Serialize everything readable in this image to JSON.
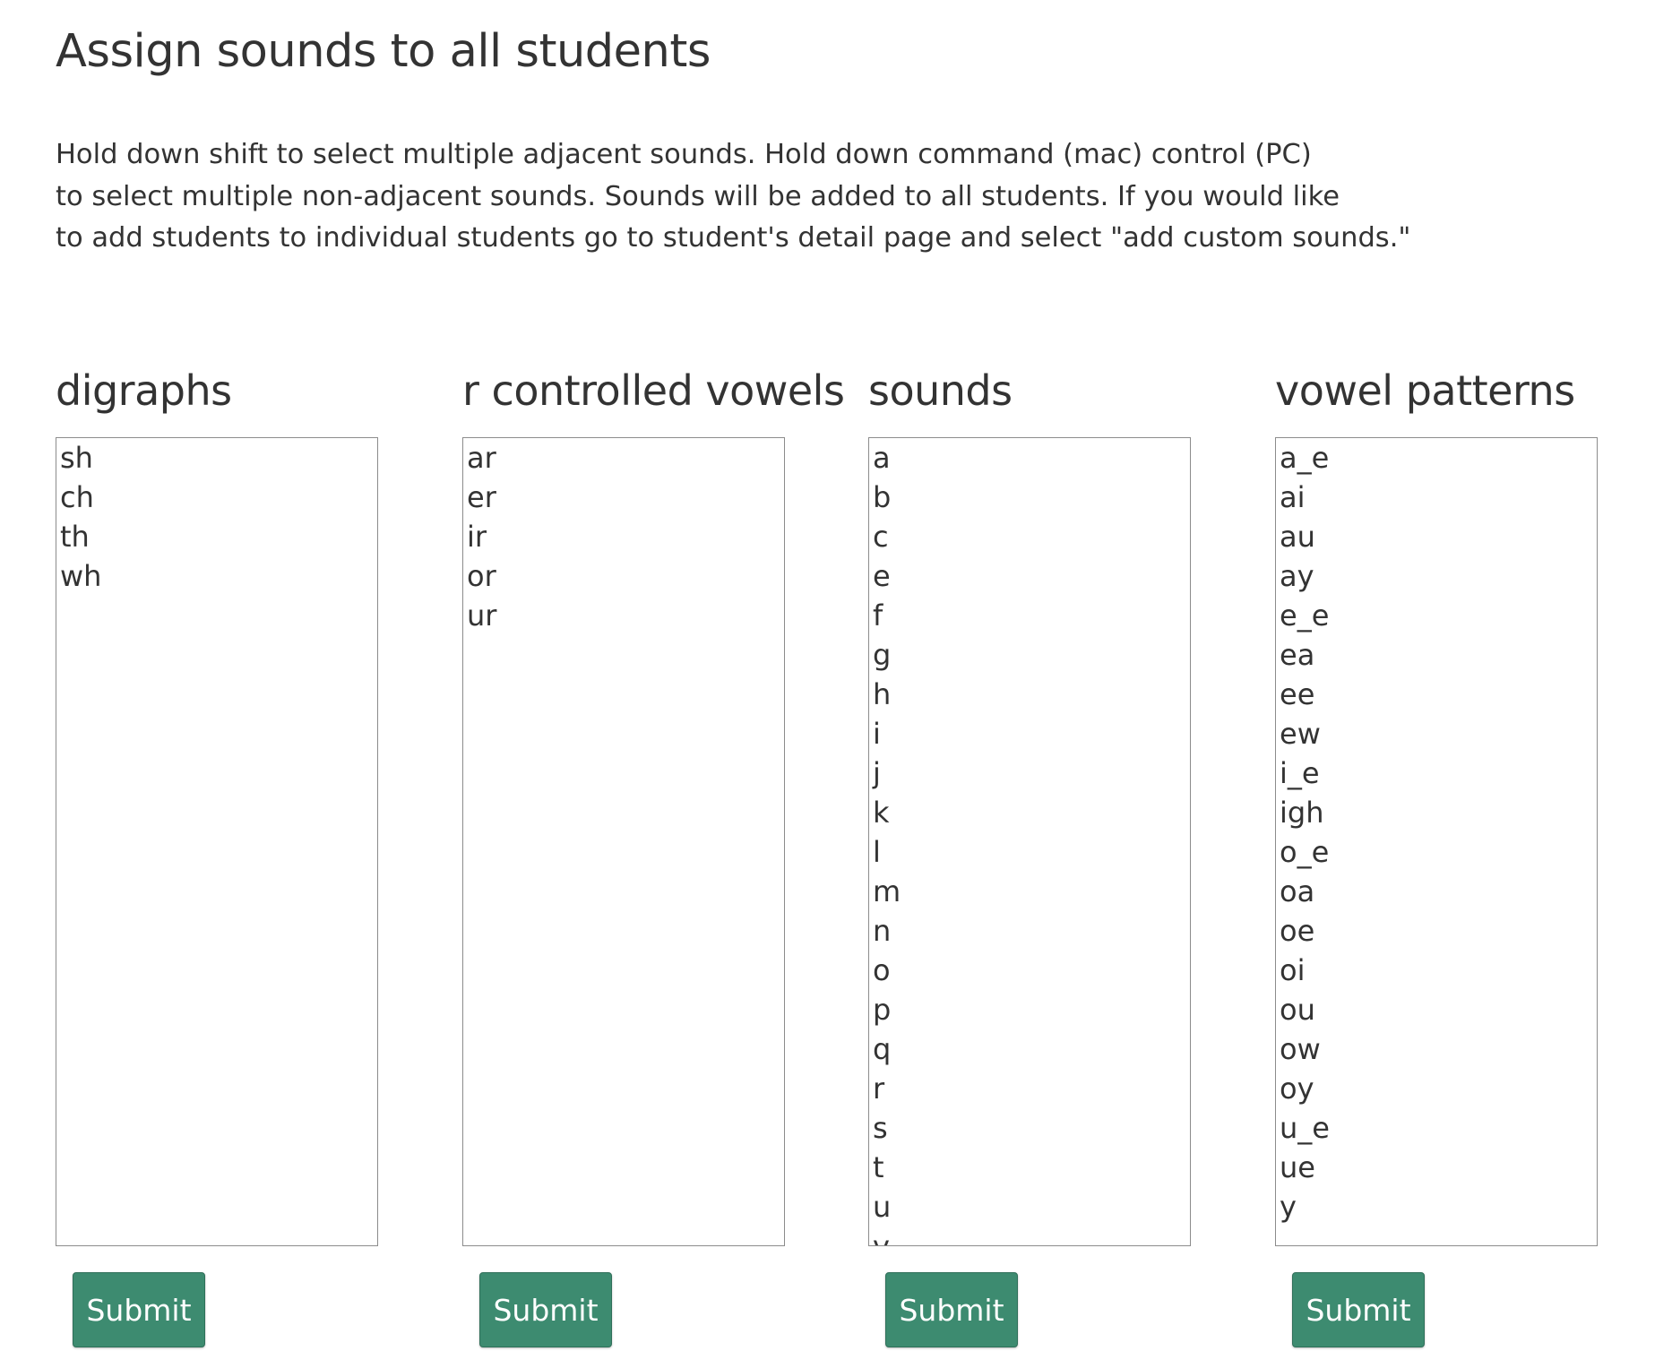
{
  "page": {
    "title": "Assign sounds to all students",
    "instructions": [
      "Hold down shift to select multiple adjacent sounds. Hold down command (mac) control (PC)",
      "to select multiple non-adjacent sounds. Sounds will be added to all students. If you would like",
      "to add students to individual students go to student's detail page and select \"add custom sounds.\""
    ]
  },
  "columns": [
    {
      "heading": "digraphs",
      "items": [
        "sh",
        "ch",
        "th",
        "wh"
      ],
      "submit_label": "Submit"
    },
    {
      "heading": "r controlled vowels",
      "items": [
        "ar",
        "er",
        "ir",
        "or",
        "ur"
      ],
      "submit_label": "Submit"
    },
    {
      "heading": "sounds",
      "items": [
        "a",
        "b",
        "c",
        "e",
        "f",
        "g",
        "h",
        "i",
        "j",
        "k",
        "l",
        "m",
        "n",
        "o",
        "p",
        "q",
        "r",
        "s",
        "t",
        "u",
        "v"
      ],
      "submit_label": "Submit"
    },
    {
      "heading": "vowel patterns",
      "items": [
        "a_e",
        "ai",
        "au",
        "ay",
        "e_e",
        "ea",
        "ee",
        "ew",
        "i_e",
        "igh",
        "o_e",
        "oa",
        "oe",
        "oi",
        "ou",
        "ow",
        "oy",
        "u_e",
        "ue",
        "y"
      ],
      "submit_label": "Submit"
    }
  ],
  "colors": {
    "submit_background": "#3d8b70",
    "submit_text": "#ffffff",
    "text": "#333333",
    "listbox_border": "#8c8c8c"
  }
}
